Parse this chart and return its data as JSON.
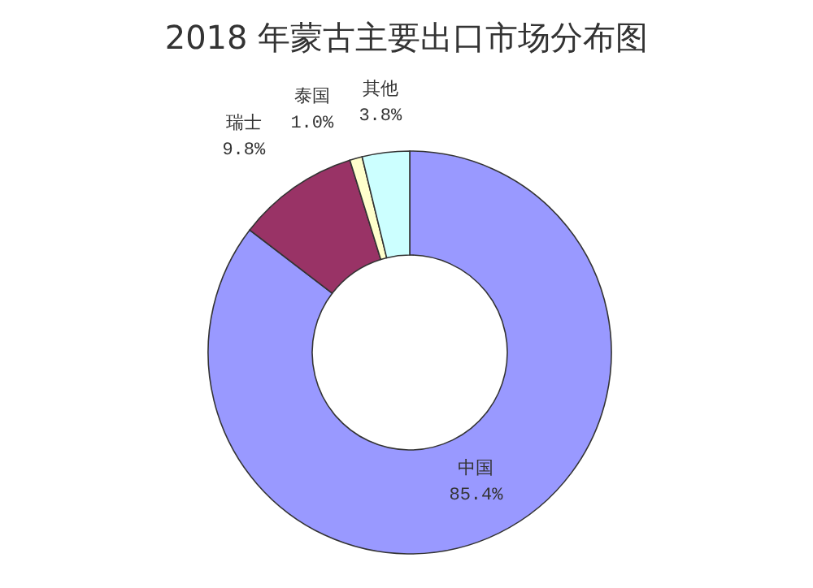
{
  "chart_data": {
    "type": "donut",
    "title": "2018 年蒙古主要出口市场分布图",
    "categories": [
      "中国",
      "瑞士",
      "泰国",
      "其他"
    ],
    "values": [
      85.4,
      9.8,
      1.0,
      3.8
    ],
    "colors": [
      "#9999ff",
      "#993366",
      "#ffffcc",
      "#ccffff"
    ],
    "value_labels": [
      "85.4%",
      "9.8%",
      "1.0%",
      "3.8%"
    ]
  }
}
